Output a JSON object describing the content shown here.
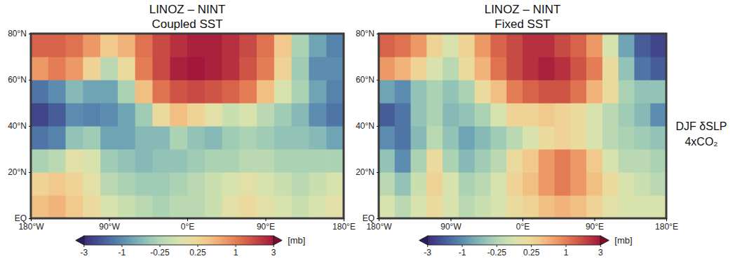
{
  "chart_data": [
    {
      "type": "heatmap",
      "title": "LINOZ – NINT",
      "subtitle": "Coupled SST",
      "x": [
        -170,
        -150,
        -130,
        -110,
        -90,
        -70,
        -50,
        -30,
        -10,
        10,
        30,
        50,
        70,
        90,
        110,
        130,
        150,
        170
      ],
      "y": [
        5,
        15,
        25,
        35,
        45,
        55,
        65,
        75
      ],
      "values": [
        [
          0.5,
          0.6,
          0.4,
          0.2,
          0.0,
          -0.1,
          -0.2,
          -0.3,
          -0.2,
          -0.2,
          -0.1,
          0.1,
          0.2,
          0.1,
          0.0,
          -0.1,
          0.0,
          0.1
        ],
        [
          0.3,
          0.4,
          0.3,
          0.1,
          -0.2,
          -0.3,
          -0.4,
          -0.4,
          -0.3,
          -0.2,
          -0.1,
          0.0,
          0.1,
          0.0,
          -0.1,
          -0.2,
          -0.1,
          0.0
        ],
        [
          -0.3,
          -0.2,
          0.1,
          0.0,
          -0.4,
          -0.5,
          -0.6,
          -0.5,
          -0.5,
          -0.4,
          -0.3,
          -0.3,
          -0.2,
          -0.2,
          -0.3,
          -0.3,
          -0.3,
          -0.3
        ],
        [
          -1.5,
          -1.2,
          -0.5,
          -0.4,
          -0.8,
          -0.8,
          -0.6,
          -0.6,
          -0.3,
          -0.5,
          -0.6,
          -0.4,
          -0.3,
          -0.4,
          -0.5,
          -0.5,
          -0.6,
          -0.8
        ],
        [
          -2.5,
          -2.0,
          -1.0,
          -1.2,
          -1.0,
          -0.8,
          -0.4,
          0.2,
          0.5,
          0.3,
          0.1,
          -0.1,
          0.0,
          -0.2,
          -0.4,
          -0.6,
          -1.0,
          -1.5
        ],
        [
          -1.5,
          -1.0,
          -0.6,
          -0.8,
          -0.8,
          -0.3,
          0.5,
          1.2,
          1.8,
          2.0,
          1.8,
          1.5,
          1.0,
          0.5,
          0.0,
          -0.3,
          -0.8,
          -1.2
        ],
        [
          0.8,
          1.0,
          0.8,
          0.3,
          -0.2,
          0.2,
          1.0,
          2.0,
          2.8,
          3.0,
          2.8,
          2.5,
          1.8,
          1.0,
          0.3,
          -0.4,
          -1.0,
          -1.0
        ],
        [
          1.5,
          1.5,
          1.2,
          0.8,
          0.4,
          0.6,
          1.2,
          2.0,
          2.5,
          2.8,
          2.8,
          2.5,
          2.0,
          1.2,
          0.4,
          -0.3,
          -0.8,
          -1.2
        ]
      ],
      "xlim": [
        -180,
        180
      ],
      "ylim": [
        0,
        80
      ],
      "xticks": [
        {
          "value": -180,
          "label": "180°W"
        },
        {
          "value": -90,
          "label": "90°W"
        },
        {
          "value": 0,
          "label": "0°E"
        },
        {
          "value": 90,
          "label": "90°E"
        },
        {
          "value": 180,
          "label": "180°E"
        }
      ],
      "yticks": [
        {
          "value": 0,
          "label": "EQ"
        },
        {
          "value": 20,
          "label": "20°N"
        },
        {
          "value": 40,
          "label": "40°N"
        },
        {
          "value": 60,
          "label": "60°N"
        },
        {
          "value": 80,
          "label": "80°N"
        }
      ],
      "colorbar_range": [
        -3,
        3
      ],
      "colorbar_ticks": [
        -3,
        -1,
        -0.25,
        0.25,
        1,
        3
      ],
      "colorbar_label": "[mb]"
    },
    {
      "type": "heatmap",
      "title": "LINOZ – NINT",
      "subtitle": "Fixed SST",
      "x": [
        -170,
        -150,
        -130,
        -110,
        -90,
        -70,
        -50,
        -30,
        -10,
        10,
        30,
        50,
        70,
        90,
        110,
        130,
        150,
        170
      ],
      "y": [
        5,
        15,
        25,
        35,
        45,
        55,
        65,
        75
      ],
      "values": [
        [
          0.0,
          -0.2,
          0.0,
          0.2,
          0.0,
          -0.2,
          -0.1,
          0.0,
          0.2,
          0.3,
          0.5,
          0.6,
          0.5,
          0.3,
          0.1,
          0.0,
          0.0,
          0.0
        ],
        [
          -0.2,
          -0.5,
          -0.1,
          0.3,
          0.0,
          -0.3,
          -0.2,
          0.0,
          0.3,
          0.5,
          0.8,
          1.0,
          0.8,
          0.5,
          0.2,
          0.0,
          -0.1,
          -0.2
        ],
        [
          -0.5,
          -1.0,
          -0.3,
          0.2,
          -0.3,
          -0.6,
          -0.4,
          -0.2,
          0.2,
          0.4,
          0.8,
          1.0,
          0.8,
          0.4,
          0.0,
          -0.2,
          -0.2,
          -0.3
        ],
        [
          -1.0,
          -1.5,
          -0.6,
          -0.2,
          -0.5,
          -0.8,
          -0.6,
          -0.4,
          -0.2,
          0.0,
          0.2,
          0.3,
          0.2,
          0.0,
          -0.2,
          -0.3,
          -0.4,
          -0.5
        ],
        [
          -2.0,
          -1.5,
          -0.5,
          -0.3,
          -0.6,
          -0.5,
          -0.3,
          0.0,
          0.3,
          0.3,
          0.4,
          0.3,
          0.2,
          0.0,
          -0.2,
          -0.4,
          -0.6,
          -1.0
        ],
        [
          -0.8,
          -1.0,
          -0.5,
          -0.3,
          -0.5,
          -0.3,
          0.2,
          0.5,
          1.0,
          1.5,
          1.8,
          1.8,
          1.2,
          0.6,
          0.2,
          -0.3,
          -0.5,
          -0.5
        ],
        [
          0.8,
          0.6,
          0.3,
          0.0,
          -0.2,
          0.2,
          0.6,
          1.2,
          2.0,
          2.5,
          2.8,
          2.5,
          1.8,
          1.0,
          0.2,
          -0.5,
          -1.5,
          -2.0
        ],
        [
          1.5,
          1.2,
          0.8,
          0.3,
          0.0,
          0.3,
          0.8,
          1.5,
          2.0,
          2.5,
          2.5,
          2.0,
          1.5,
          0.8,
          0.0,
          -0.8,
          -2.0,
          -2.5
        ]
      ],
      "xlim": [
        -180,
        180
      ],
      "ylim": [
        0,
        80
      ],
      "xticks": [
        {
          "value": -180,
          "label": "180°W"
        },
        {
          "value": -90,
          "label": "90°W"
        },
        {
          "value": 0,
          "label": "0°E"
        },
        {
          "value": 90,
          "label": "90°E"
        },
        {
          "value": 180,
          "label": "180°E"
        }
      ],
      "yticks": [
        {
          "value": 0,
          "label": "EQ"
        },
        {
          "value": 20,
          "label": "20°N"
        },
        {
          "value": 40,
          "label": "40°N"
        },
        {
          "value": 60,
          "label": "60°N"
        },
        {
          "value": 80,
          "label": "80°N"
        }
      ],
      "colorbar_range": [
        -3,
        3
      ],
      "colorbar_ticks": [
        -3,
        -1,
        -0.25,
        0.25,
        1,
        3
      ],
      "colorbar_label": "[mb]",
      "annotations": [
        "DJF δSLP",
        "4xCO₂"
      ]
    }
  ]
}
